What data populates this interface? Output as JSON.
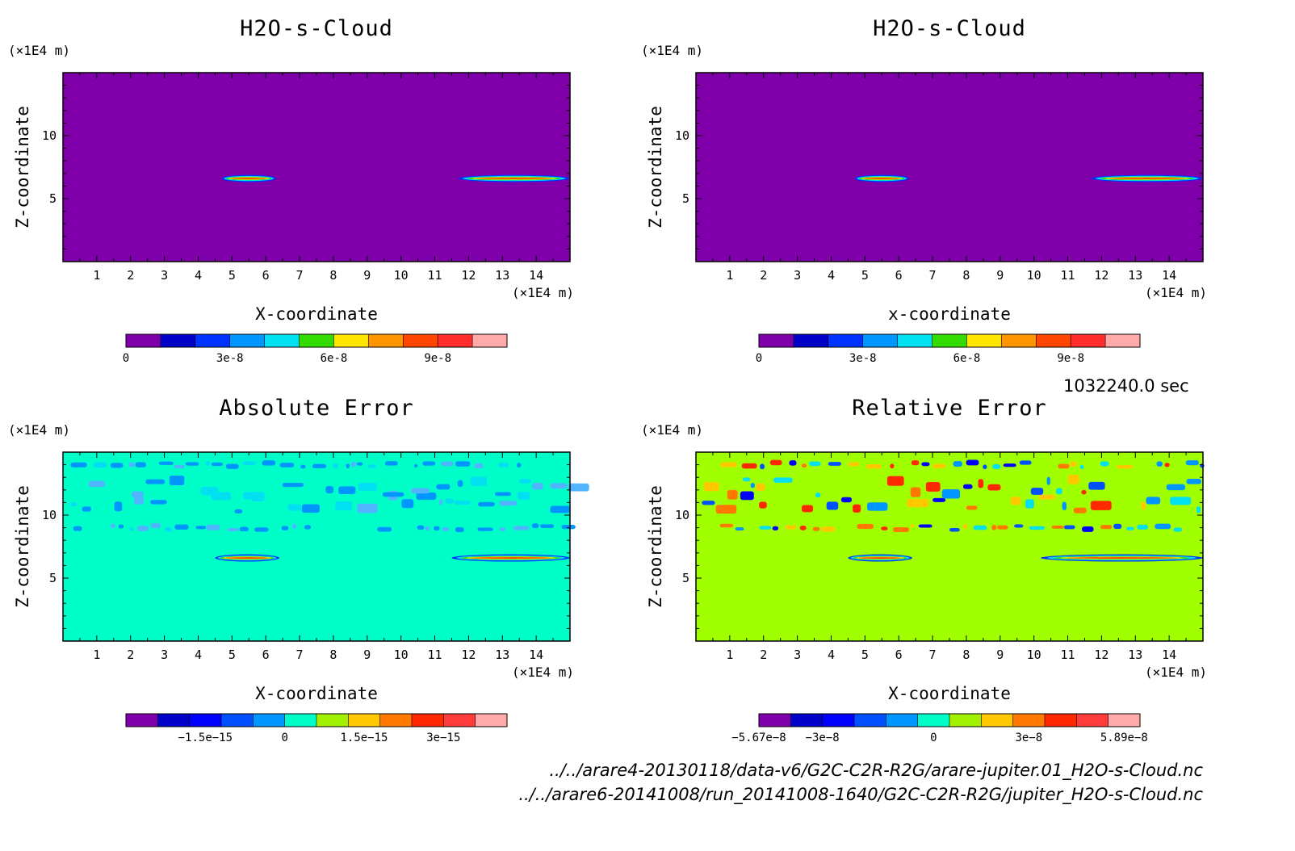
{
  "time_label": "1032240.0 sec",
  "footer_lines": [
    "../../arare4-20130118/data-v6/G2C-C2R-R2G/arare-jupiter.01_H2O-s-Cloud.nc",
    "../../arare6-20141008/run_20141008-1640/G2C-C2R-R2G/jupiter_H2O-s-Cloud.nc"
  ],
  "chart_data": [
    {
      "type": "heatmap",
      "title": "H2O-s-Cloud",
      "xlabel": "X-coordinate",
      "ylabel": "Z-coordinate",
      "x_unit": "(×1E4 m)",
      "y_unit": "(×1E4 m)",
      "xlim": [
        0,
        15
      ],
      "ylim": [
        0,
        15
      ],
      "x_ticks": [
        "1",
        "2",
        "3",
        "4",
        "5",
        "6",
        "7",
        "8",
        "9",
        "10",
        "11",
        "12",
        "13",
        "14"
      ],
      "y_ticks": [
        "5",
        "10"
      ],
      "background_color": "#7f00aa",
      "features": [
        {
          "x": [
            4.7,
            6.3
          ],
          "z": 6.6
        },
        {
          "x": [
            11.7,
            15.0
          ],
          "z": 6.6
        }
      ],
      "colorbar": {
        "ticks": [
          "0",
          "3e-8",
          "6e-8",
          "9e-8"
        ],
        "colors": [
          "#7f00aa",
          "#0000c8",
          "#0032ff",
          "#0096ff",
          "#00e0f0",
          "#32dc00",
          "#ffe600",
          "#ff9600",
          "#ff4600",
          "#ff2d2d",
          "#ffaaaa"
        ]
      }
    },
    {
      "type": "heatmap",
      "title": "H2O-s-Cloud",
      "xlabel": "x-coordinate",
      "ylabel": "Z-coordinate",
      "x_unit": "(×1E4 m)",
      "y_unit": "(×1E4 m)",
      "xlim": [
        0,
        15
      ],
      "ylim": [
        0,
        15
      ],
      "x_ticks": [
        "1",
        "2",
        "3",
        "4",
        "5",
        "6",
        "7",
        "8",
        "9",
        "10",
        "11",
        "12",
        "13",
        "14"
      ],
      "y_ticks": [
        "5",
        "10"
      ],
      "background_color": "#7f00aa",
      "features": [
        {
          "x": [
            4.7,
            6.3
          ],
          "z": 6.6
        },
        {
          "x": [
            11.7,
            15.0
          ],
          "z": 6.6
        }
      ],
      "colorbar": {
        "ticks": [
          "0",
          "3e-8",
          "6e-8",
          "9e-8"
        ],
        "colors": [
          "#7f00aa",
          "#0000c8",
          "#0032ff",
          "#0096ff",
          "#00e0f0",
          "#32dc00",
          "#ffe600",
          "#ff9600",
          "#ff4600",
          "#ff2d2d",
          "#ffaaaa"
        ]
      }
    },
    {
      "type": "heatmap",
      "title": "Absolute Error",
      "xlabel": "X-coordinate",
      "ylabel": "Z-coordinate",
      "x_unit": "(×1E4 m)",
      "y_unit": "(×1E4 m)",
      "xlim": [
        0,
        15
      ],
      "ylim": [
        0,
        15
      ],
      "x_ticks": [
        "1",
        "2",
        "3",
        "4",
        "5",
        "6",
        "7",
        "8",
        "9",
        "10",
        "11",
        "12",
        "13",
        "14"
      ],
      "y_ticks": [
        "5",
        "10"
      ],
      "background_color": "#00ffc8",
      "features": [
        {
          "x": [
            4.5,
            6.4
          ],
          "z": 6.6
        },
        {
          "x": [
            11.5,
            15.0
          ],
          "z": 6.6
        }
      ],
      "noise_bands": [
        9.0,
        11.0,
        12.2,
        14.0
      ],
      "colorbar": {
        "ticks": [
          "−1.5e−15",
          "0",
          "1.5e−15",
          "3e−15"
        ],
        "colors": [
          "#7f00aa",
          "#0000c8",
          "#0000ff",
          "#0050ff",
          "#0096ff",
          "#00ffc8",
          "#a0f000",
          "#ffc800",
          "#ff7800",
          "#ff2800",
          "#ff3c3c",
          "#ffaaaa"
        ]
      }
    },
    {
      "type": "heatmap",
      "title": "Relative Error",
      "xlabel": "X-coordinate",
      "ylabel": "Z-coordinate",
      "x_unit": "(×1E4 m)",
      "y_unit": "(×1E4 m)",
      "xlim": [
        0,
        15
      ],
      "ylim": [
        0,
        15
      ],
      "x_ticks": [
        "1",
        "2",
        "3",
        "4",
        "5",
        "6",
        "7",
        "8",
        "9",
        "10",
        "11",
        "12",
        "13",
        "14"
      ],
      "y_ticks": [
        "5",
        "10"
      ],
      "background_color": "#a0ff00",
      "features": [
        {
          "x": [
            4.5,
            6.4
          ],
          "z": 6.6
        },
        {
          "x": [
            10.2,
            15.0
          ],
          "z": 6.6
        }
      ],
      "noise_bands": [
        9.0,
        11.0,
        12.2,
        14.0
      ],
      "colorbar": {
        "ticks": [
          "−5.67e−8",
          "−3e−8",
          "0",
          "3e−8",
          "5.89e−8"
        ],
        "colors": [
          "#7f00aa",
          "#0000c8",
          "#0000ff",
          "#0050ff",
          "#0096ff",
          "#00ffc8",
          "#a0f000",
          "#ffc800",
          "#ff7800",
          "#ff2800",
          "#ff3c3c",
          "#ffaaaa"
        ]
      }
    }
  ]
}
